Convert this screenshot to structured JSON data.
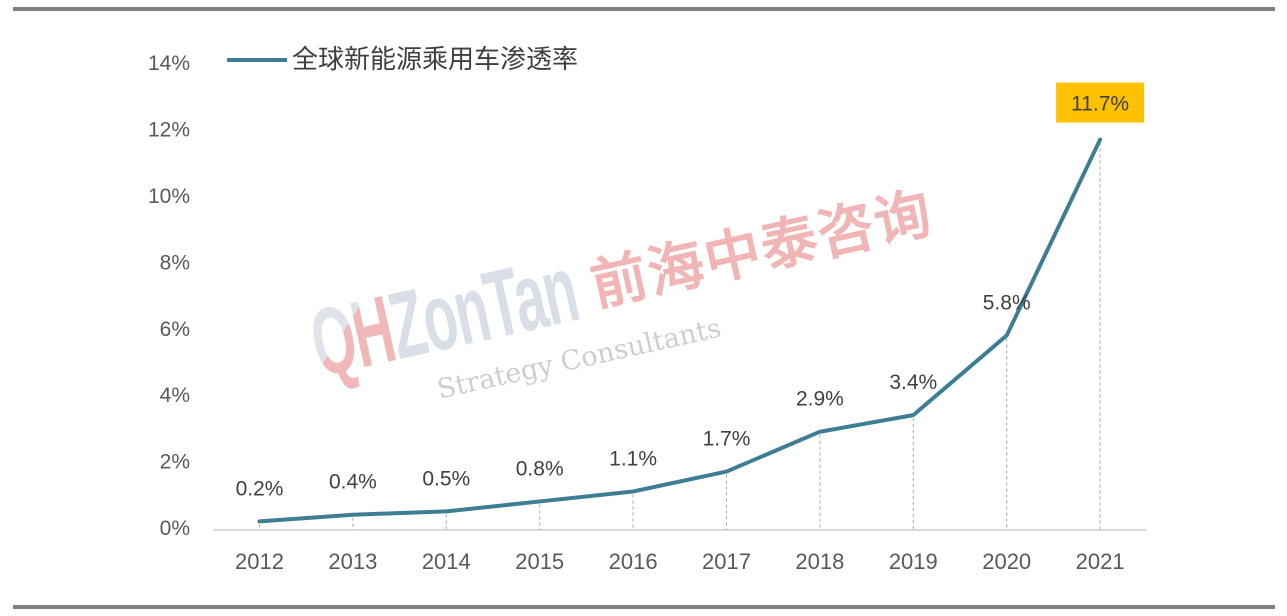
{
  "legend": {
    "label": "全球新能源乘用车渗透率"
  },
  "watermark": {
    "brand_prefix": "QH",
    "brand_suffix": "ZonTan",
    "brand_cn": "前海中泰咨询",
    "tagline": "Strategy Consultants"
  },
  "colors": {
    "line": "#3d7e95",
    "highlight_bg": "#ffc000",
    "axis_text": "#595959",
    "label_text": "#404040",
    "axis_line": "#d9d9d9",
    "drop_line": "#a6a6a6",
    "frame_line": "#7f7f7f",
    "legend_text": "#3f3f3f"
  },
  "chart_data": {
    "type": "line",
    "title": "",
    "legend_entries": [
      "全球新能源乘用车渗透率"
    ],
    "legend_position": "top-left",
    "categories": [
      "2012",
      "2013",
      "2014",
      "2015",
      "2016",
      "2017",
      "2018",
      "2019",
      "2020",
      "2021"
    ],
    "series": [
      {
        "name": "全球新能源乘用车渗透率",
        "values": [
          0.2,
          0.4,
          0.5,
          0.8,
          1.1,
          1.7,
          2.9,
          3.4,
          5.8,
          11.7
        ]
      }
    ],
    "data_labels": [
      "0.2%",
      "0.4%",
      "0.5%",
      "0.8%",
      "1.1%",
      "1.7%",
      "2.9%",
      "3.4%",
      "5.8%",
      "11.7%"
    ],
    "ylim": [
      0,
      14
    ],
    "y_ticks": [
      0,
      2,
      4,
      6,
      8,
      10,
      12,
      14
    ],
    "y_tick_labels": [
      "0%",
      "2%",
      "4%",
      "6%",
      "8%",
      "10%",
      "12%",
      "14%"
    ],
    "grid": "off",
    "drop_lines": "dashed",
    "highlight": {
      "index": 9,
      "label": "11.7%",
      "background": "#ffc000"
    }
  }
}
